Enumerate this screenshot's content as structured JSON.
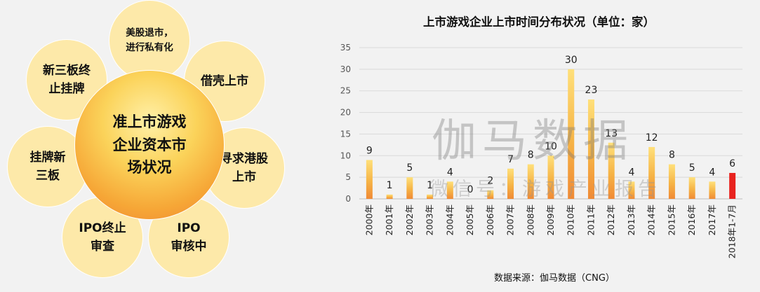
{
  "diagram": {
    "center": "准上市游戏\n企业资本市\n场状况",
    "satellites": [
      {
        "key": "delist",
        "label": "美股退市，\n进行私有化"
      },
      {
        "key": "shell",
        "label": "借壳上市"
      },
      {
        "key": "hk",
        "label": "寻求港股\n上市"
      },
      {
        "key": "ipo-review",
        "label": "IPO\n审核中"
      },
      {
        "key": "ipo-stop",
        "label": "IPO终止\n审查"
      },
      {
        "key": "listing",
        "label": "挂牌新\n三板"
      },
      {
        "key": "new3-stop",
        "label": "新三板终\n止挂牌"
      }
    ]
  },
  "watermark": {
    "big": "伽马数据",
    "small": "微信号：游戏产业报告"
  },
  "chart_data": {
    "type": "bar",
    "title": "上市游戏企业上市时间分布状况（单位：家）",
    "source": "数据来源：伽马数据（CNG）",
    "categories": [
      "2000年",
      "2001年",
      "2002年",
      "2003年",
      "2004年",
      "2005年",
      "2006年",
      "2007年",
      "2008年",
      "2009年",
      "2010年",
      "2011年",
      "2012年",
      "2013年",
      "2014年",
      "2015年",
      "2016年",
      "2017年",
      "2018年1-7月"
    ],
    "values": [
      9,
      1,
      5,
      1,
      4,
      0,
      2,
      7,
      8,
      10,
      30,
      23,
      13,
      4,
      12,
      8,
      5,
      4,
      6
    ],
    "ylim": [
      0,
      35
    ],
    "yticks": [
      0,
      5,
      10,
      15,
      20,
      25,
      30,
      35
    ],
    "grid": true,
    "legend": "none",
    "colors": {
      "bar_top": "#ffe07a",
      "bar_bottom": "#f08a35",
      "highlight": "#e8231f"
    },
    "highlight_index": 18
  }
}
